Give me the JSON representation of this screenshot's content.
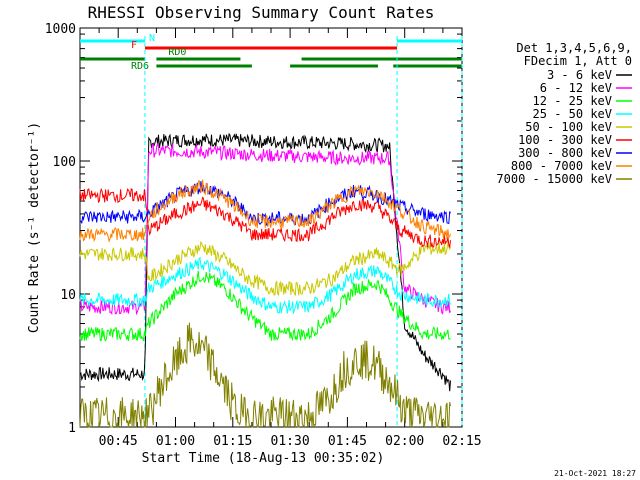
{
  "chart_data": {
    "type": "line",
    "title": "RHESSI Observing Summary Count Rates",
    "xlabel": "Start Time (18-Aug-13 00:35:02)",
    "ylabel": "Count Rate (s⁻¹ detector⁻¹)",
    "y_scale": "log",
    "ylim": [
      1,
      1000
    ],
    "y_ticks": [
      {
        "value": 1,
        "label": "1"
      },
      {
        "value": 10,
        "label": "10"
      },
      {
        "value": 100,
        "label": "100"
      },
      {
        "value": 1000,
        "label": "1000"
      }
    ],
    "xlim_minutes_after_0035": [
      0,
      100
    ],
    "x_ticks": [
      {
        "minutes": 10,
        "label": "00:45"
      },
      {
        "minutes": 25,
        "label": "01:00"
      },
      {
        "minutes": 40,
        "label": "01:15"
      },
      {
        "minutes": 55,
        "label": "01:30"
      },
      {
        "minutes": 70,
        "label": "01:45"
      },
      {
        "minutes": 85,
        "label": "02:00"
      },
      {
        "minutes": 100,
        "label": "02:15"
      }
    ],
    "legend_header": [
      "Det 1,3,4,5,6,9,",
      "FDecim 1, Att 0"
    ],
    "legend_position": "right",
    "series": [
      {
        "name": "3 - 6 keV",
        "color": "#000000",
        "x": [
          0,
          17,
          18,
          30,
          50,
          70,
          81,
          85,
          90,
          95,
          97
        ],
        "y": [
          2.5,
          2.5,
          140,
          145,
          140,
          135,
          130,
          6,
          3.5,
          2.5,
          2
        ]
      },
      {
        "name": "6 - 12 keV",
        "color": "#ff00ff",
        "x": [
          0,
          17,
          18,
          30,
          50,
          70,
          81,
          85,
          90,
          95,
          97
        ],
        "y": [
          8,
          8,
          120,
          118,
          110,
          105,
          105,
          11,
          9,
          8,
          8
        ]
      },
      {
        "name": "12 - 25 keV",
        "color": "#00ff00",
        "x": [
          0,
          17,
          18,
          25,
          32,
          38,
          44,
          50,
          60,
          66,
          72,
          78,
          84,
          90,
          97
        ],
        "y": [
          5,
          5,
          6,
          10,
          14,
          11,
          7,
          5,
          5,
          7,
          11,
          12,
          7,
          5,
          5
        ]
      },
      {
        "name": "25 - 50 keV",
        "color": "#00ffff",
        "x": [
          0,
          17,
          18,
          25,
          32,
          38,
          44,
          50,
          60,
          66,
          72,
          78,
          84,
          90,
          97
        ],
        "y": [
          9,
          9,
          11,
          14,
          17,
          14,
          10,
          8,
          8,
          10,
          14,
          15,
          10,
          9,
          9
        ]
      },
      {
        "name": "50 - 100 keV",
        "color": "#c8c800",
        "x": [
          0,
          17,
          18,
          25,
          32,
          38,
          44,
          50,
          60,
          66,
          72,
          78,
          84,
          90,
          97
        ],
        "y": [
          20,
          20,
          13,
          18,
          23,
          18,
          13,
          11,
          11,
          13,
          18,
          20,
          15,
          22,
          22
        ]
      },
      {
        "name": "100 - 300 keV",
        "color": "#ff0000",
        "x": [
          0,
          17,
          18,
          25,
          32,
          38,
          44,
          45,
          60,
          66,
          72,
          78,
          84,
          90,
          97
        ],
        "y": [
          55,
          55,
          30,
          40,
          48,
          40,
          30,
          28,
          28,
          38,
          48,
          45,
          30,
          25,
          25
        ]
      },
      {
        "name": "300 - 800 keV",
        "color": "#0000ff",
        "x": [
          0,
          17,
          18,
          25,
          32,
          38,
          44,
          45,
          60,
          66,
          72,
          78,
          84,
          90,
          97
        ],
        "y": [
          38,
          38,
          40,
          55,
          65,
          55,
          40,
          37,
          37,
          50,
          60,
          55,
          45,
          40,
          38
        ]
      },
      {
        "name": "800 - 7000 keV",
        "color": "#ff8000",
        "x": [
          0,
          17,
          18,
          25,
          32,
          38,
          44,
          45,
          60,
          66,
          72,
          78,
          84,
          90,
          97
        ],
        "y": [
          28,
          28,
          38,
          55,
          65,
          52,
          38,
          35,
          35,
          48,
          60,
          58,
          42,
          32,
          28
        ]
      },
      {
        "name": "7000 - 15000 keV",
        "color": "#808000",
        "x": [
          0,
          17,
          18,
          21,
          25,
          29,
          33,
          37,
          41,
          45,
          60,
          65,
          69,
          73,
          77,
          81,
          85,
          90,
          97
        ],
        "y": [
          1.2,
          1.2,
          1.2,
          2.0,
          3.0,
          4.5,
          3.5,
          2.2,
          1.3,
          1.2,
          1.2,
          1.6,
          2.7,
          3.3,
          3.0,
          2.2,
          1.3,
          1.2,
          1.2
        ]
      }
    ],
    "flags": [
      {
        "label": "N",
        "color": "#00ffff",
        "segments": [
          [
            0,
            17
          ],
          [
            83,
            100
          ]
        ]
      },
      {
        "label": "F",
        "color": "#ff0000",
        "segments": [
          [
            17,
            83
          ]
        ]
      },
      {
        "label": "RD0",
        "color": "#008000",
        "segments": [
          [
            0,
            17
          ],
          [
            20,
            42
          ],
          [
            58,
            100
          ]
        ]
      },
      {
        "label": "RD6",
        "color": "#008000",
        "segments": [
          [
            20,
            45
          ],
          [
            55,
            78
          ],
          [
            82,
            100
          ]
        ]
      }
    ],
    "grid": false
  },
  "stamp": "21-Oct-2021 18:27"
}
